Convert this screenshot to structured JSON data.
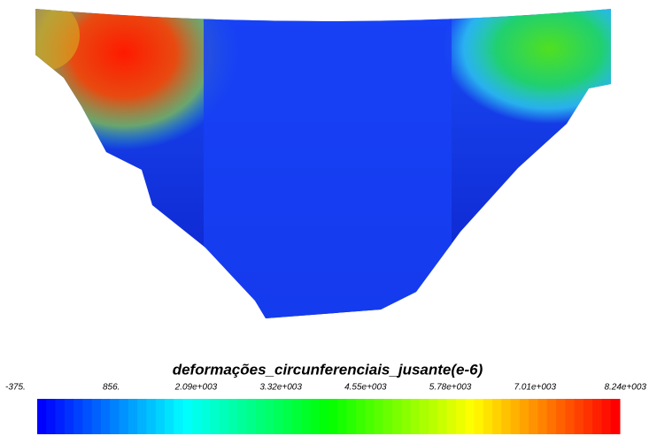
{
  "colorbar": {
    "title": "deformações_circunferenciais_jusante(e-6)",
    "tick_labels": [
      "-375.",
      "856.",
      "2.09e+003",
      "3.32e+003",
      "4.55e+003",
      "5.78e+003",
      "7.01e+003",
      "8.24e+003"
    ]
  }
}
